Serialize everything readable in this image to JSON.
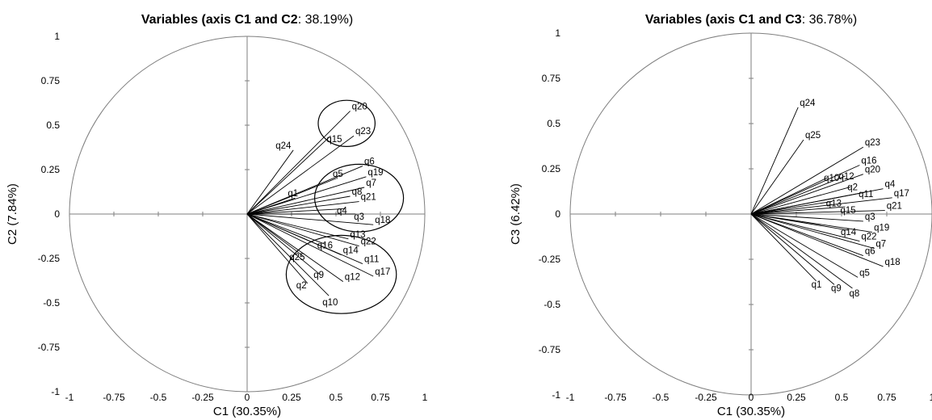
{
  "chart_data": [
    {
      "type": "scatter",
      "title_bold": "Variables (axis C1 and C2",
      "title_rest": ": 38.19%)",
      "xlabel": "C1 (30.35%)",
      "ylabel": "C2 (7.84%)",
      "xlim": [
        -1,
        1
      ],
      "ylim": [
        -1,
        1
      ],
      "ticks": [
        -1,
        -0.75,
        -0.5,
        -0.25,
        0,
        0.25,
        0.5,
        0.75,
        1
      ],
      "tick_labels": [
        "-1",
        "-0.75",
        "-0.5",
        "-0.25",
        "0",
        "0.25",
        "0.5",
        "0.75",
        "1"
      ],
      "points": [
        {
          "label": "q20",
          "x": 0.58,
          "y": 0.58
        },
        {
          "label": "q15",
          "x": 0.47,
          "y": 0.44
        },
        {
          "label": "q23",
          "x": 0.6,
          "y": 0.44
        },
        {
          "label": "q24",
          "x": 0.26,
          "y": 0.36
        },
        {
          "label": "q6",
          "x": 0.65,
          "y": 0.27
        },
        {
          "label": "q5",
          "x": 0.5,
          "y": 0.2
        },
        {
          "label": "q19",
          "x": 0.67,
          "y": 0.21
        },
        {
          "label": "q7",
          "x": 0.66,
          "y": 0.15
        },
        {
          "label": "q1",
          "x": 0.27,
          "y": 0.09
        },
        {
          "label": "q8",
          "x": 0.58,
          "y": 0.1
        },
        {
          "label": "q21",
          "x": 0.63,
          "y": 0.07
        },
        {
          "label": "q4",
          "x": 0.55,
          "y": 0.03
        },
        {
          "label": "q3",
          "x": 0.61,
          "y": 0.0
        },
        {
          "label": "q18",
          "x": 0.71,
          "y": -0.06
        },
        {
          "label": "q13",
          "x": 0.57,
          "y": -0.14
        },
        {
          "label": "q16",
          "x": 0.44,
          "y": -0.17
        },
        {
          "label": "q22",
          "x": 0.63,
          "y": -0.18
        },
        {
          "label": "q14",
          "x": 0.53,
          "y": -0.23
        },
        {
          "label": "q25",
          "x": 0.32,
          "y": -0.24
        },
        {
          "label": "q11",
          "x": 0.65,
          "y": -0.28
        },
        {
          "label": "q9",
          "x": 0.41,
          "y": -0.34
        },
        {
          "label": "q17",
          "x": 0.71,
          "y": -0.35
        },
        {
          "label": "q12",
          "x": 0.54,
          "y": -0.38
        },
        {
          "label": "q2",
          "x": 0.34,
          "y": -0.39
        },
        {
          "label": "q10",
          "x": 0.46,
          "y": -0.46
        }
      ],
      "groups": [
        {
          "cx": 0.56,
          "cy": 0.51,
          "rx": 0.16,
          "ry": 0.13
        },
        {
          "cx": 0.63,
          "cy": 0.09,
          "rx": 0.25,
          "ry": 0.19
        },
        {
          "cx": 0.53,
          "cy": -0.34,
          "rx": 0.31,
          "ry": 0.22
        }
      ]
    },
    {
      "type": "scatter",
      "title_bold": "Variables (axis C1 and C3",
      "title_rest": ": 36.78%)",
      "xlabel": "C1 (30.35%)",
      "ylabel": "C3 (6.42%)",
      "xlim": [
        -1,
        1
      ],
      "ylim": [
        -1,
        1
      ],
      "ticks": [
        -1,
        -0.75,
        -0.5,
        -0.25,
        0,
        0.25,
        0.5,
        0.75,
        1
      ],
      "tick_labels": [
        "-1",
        "-0.75",
        "-0.5",
        "-0.25",
        "0",
        "0.25",
        "0.5",
        "0.75",
        "1"
      ],
      "points": [
        {
          "label": "q24",
          "x": 0.26,
          "y": 0.59
        },
        {
          "label": "q25",
          "x": 0.29,
          "y": 0.41
        },
        {
          "label": "q23",
          "x": 0.62,
          "y": 0.37
        },
        {
          "label": "q16",
          "x": 0.6,
          "y": 0.27
        },
        {
          "label": "q10",
          "x": 0.42,
          "y": 0.2
        },
        {
          "label": "q12",
          "x": 0.52,
          "y": 0.21
        },
        {
          "label": "q20",
          "x": 0.62,
          "y": 0.22
        },
        {
          "label": "q2",
          "x": 0.55,
          "y": 0.15
        },
        {
          "label": "q4",
          "x": 0.73,
          "y": 0.14
        },
        {
          "label": "q11",
          "x": 0.63,
          "y": 0.12
        },
        {
          "label": "q17",
          "x": 0.78,
          "y": 0.09
        },
        {
          "label": "q13",
          "x": 0.45,
          "y": 0.07
        },
        {
          "label": "q15",
          "x": 0.52,
          "y": 0.04
        },
        {
          "label": "q21",
          "x": 0.74,
          "y": 0.02
        },
        {
          "label": "q3",
          "x": 0.62,
          "y": -0.04
        },
        {
          "label": "q14",
          "x": 0.54,
          "y": -0.09
        },
        {
          "label": "q19",
          "x": 0.67,
          "y": -0.1
        },
        {
          "label": "q22",
          "x": 0.6,
          "y": -0.15
        },
        {
          "label": "q7",
          "x": 0.68,
          "y": -0.19
        },
        {
          "label": "q6",
          "x": 0.62,
          "y": -0.23
        },
        {
          "label": "q18",
          "x": 0.73,
          "y": -0.29
        },
        {
          "label": "q5",
          "x": 0.59,
          "y": -0.35
        },
        {
          "label": "q1",
          "x": 0.36,
          "y": -0.37
        },
        {
          "label": "q9",
          "x": 0.46,
          "y": -0.39
        },
        {
          "label": "q8",
          "x": 0.56,
          "y": -0.41
        }
      ],
      "groups": []
    }
  ]
}
